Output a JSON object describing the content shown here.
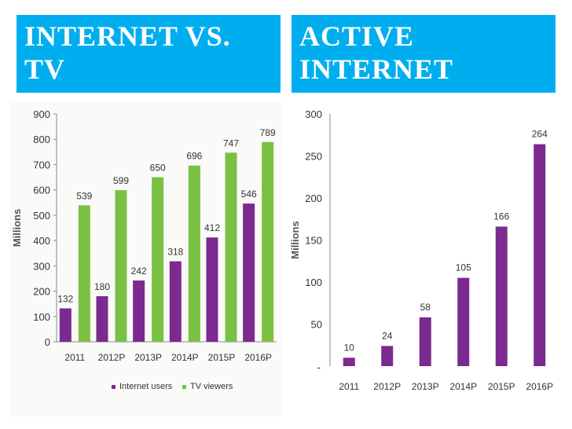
{
  "colors": {
    "banner": "#00aeef",
    "internet": "#7b2a8f",
    "tv": "#7ac143",
    "axis": "#888888",
    "text": "#333333",
    "left_bg": "#fafaf8"
  },
  "banners": {
    "left": "INTERNET VS.\nTV",
    "right": "ACTIVE\nINTERNET"
  },
  "chart_data": [
    {
      "type": "bar",
      "title": "",
      "xlabel": "",
      "ylabel": "Millions",
      "ylim": [
        0,
        900
      ],
      "yticks": [
        0,
        100,
        200,
        300,
        400,
        500,
        600,
        700,
        800,
        900
      ],
      "categories": [
        "2011",
        "2012P",
        "2013P",
        "2014P",
        "2015P",
        "2016P"
      ],
      "series": [
        {
          "name": "Internet users",
          "values": [
            132,
            180,
            242,
            318,
            412,
            546
          ]
        },
        {
          "name": "TV viewers",
          "values": [
            539,
            599,
            650,
            696,
            747,
            789
          ]
        }
      ],
      "legend": "bottom",
      "grid": false
    },
    {
      "type": "bar",
      "title": "",
      "xlabel": "",
      "ylabel": "Millions",
      "ylim": [
        0,
        300
      ],
      "yticks": [
        50,
        100,
        150,
        200,
        250,
        300
      ],
      "bottom_tick_label": "-",
      "categories": [
        "2011",
        "2012P",
        "2013P",
        "2014P",
        "2015P",
        "2016P"
      ],
      "series": [
        {
          "values": [
            10,
            24,
            58,
            105,
            166,
            264
          ]
        }
      ],
      "grid": false
    }
  ]
}
